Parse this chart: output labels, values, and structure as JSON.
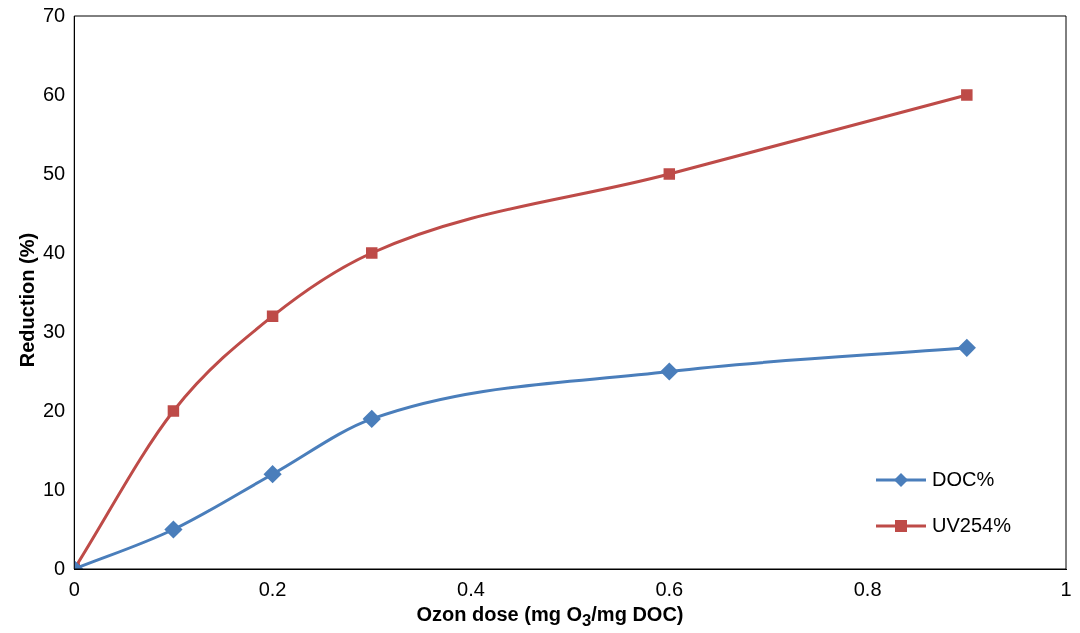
{
  "chart_data": {
    "type": "line",
    "xlabel": "Ozon dose (mg O$_{3}$/mg DOC)",
    "ylabel": "Reduction (%)",
    "x": [
      0,
      0.1,
      0.2,
      0.3,
      0.6,
      0.9
    ],
    "series": [
      {
        "name": "DOC%",
        "color": "#4a7ebb",
        "marker": "diamond",
        "values": [
          0,
          5,
          12,
          19,
          25,
          28
        ]
      },
      {
        "name": "UV254%",
        "color": "#be4b48",
        "marker": "square",
        "values": [
          0,
          20,
          32,
          40,
          50,
          60
        ]
      }
    ],
    "xlim": [
      0,
      1
    ],
    "xticks": [
      0,
      0.2,
      0.4,
      0.6,
      0.8,
      1
    ],
    "ylim": [
      0,
      70
    ],
    "yticks": [
      0,
      10,
      20,
      30,
      40,
      50,
      60,
      70
    ],
    "grid": false,
    "legend": "bottom right",
    "line_style": "solid"
  }
}
